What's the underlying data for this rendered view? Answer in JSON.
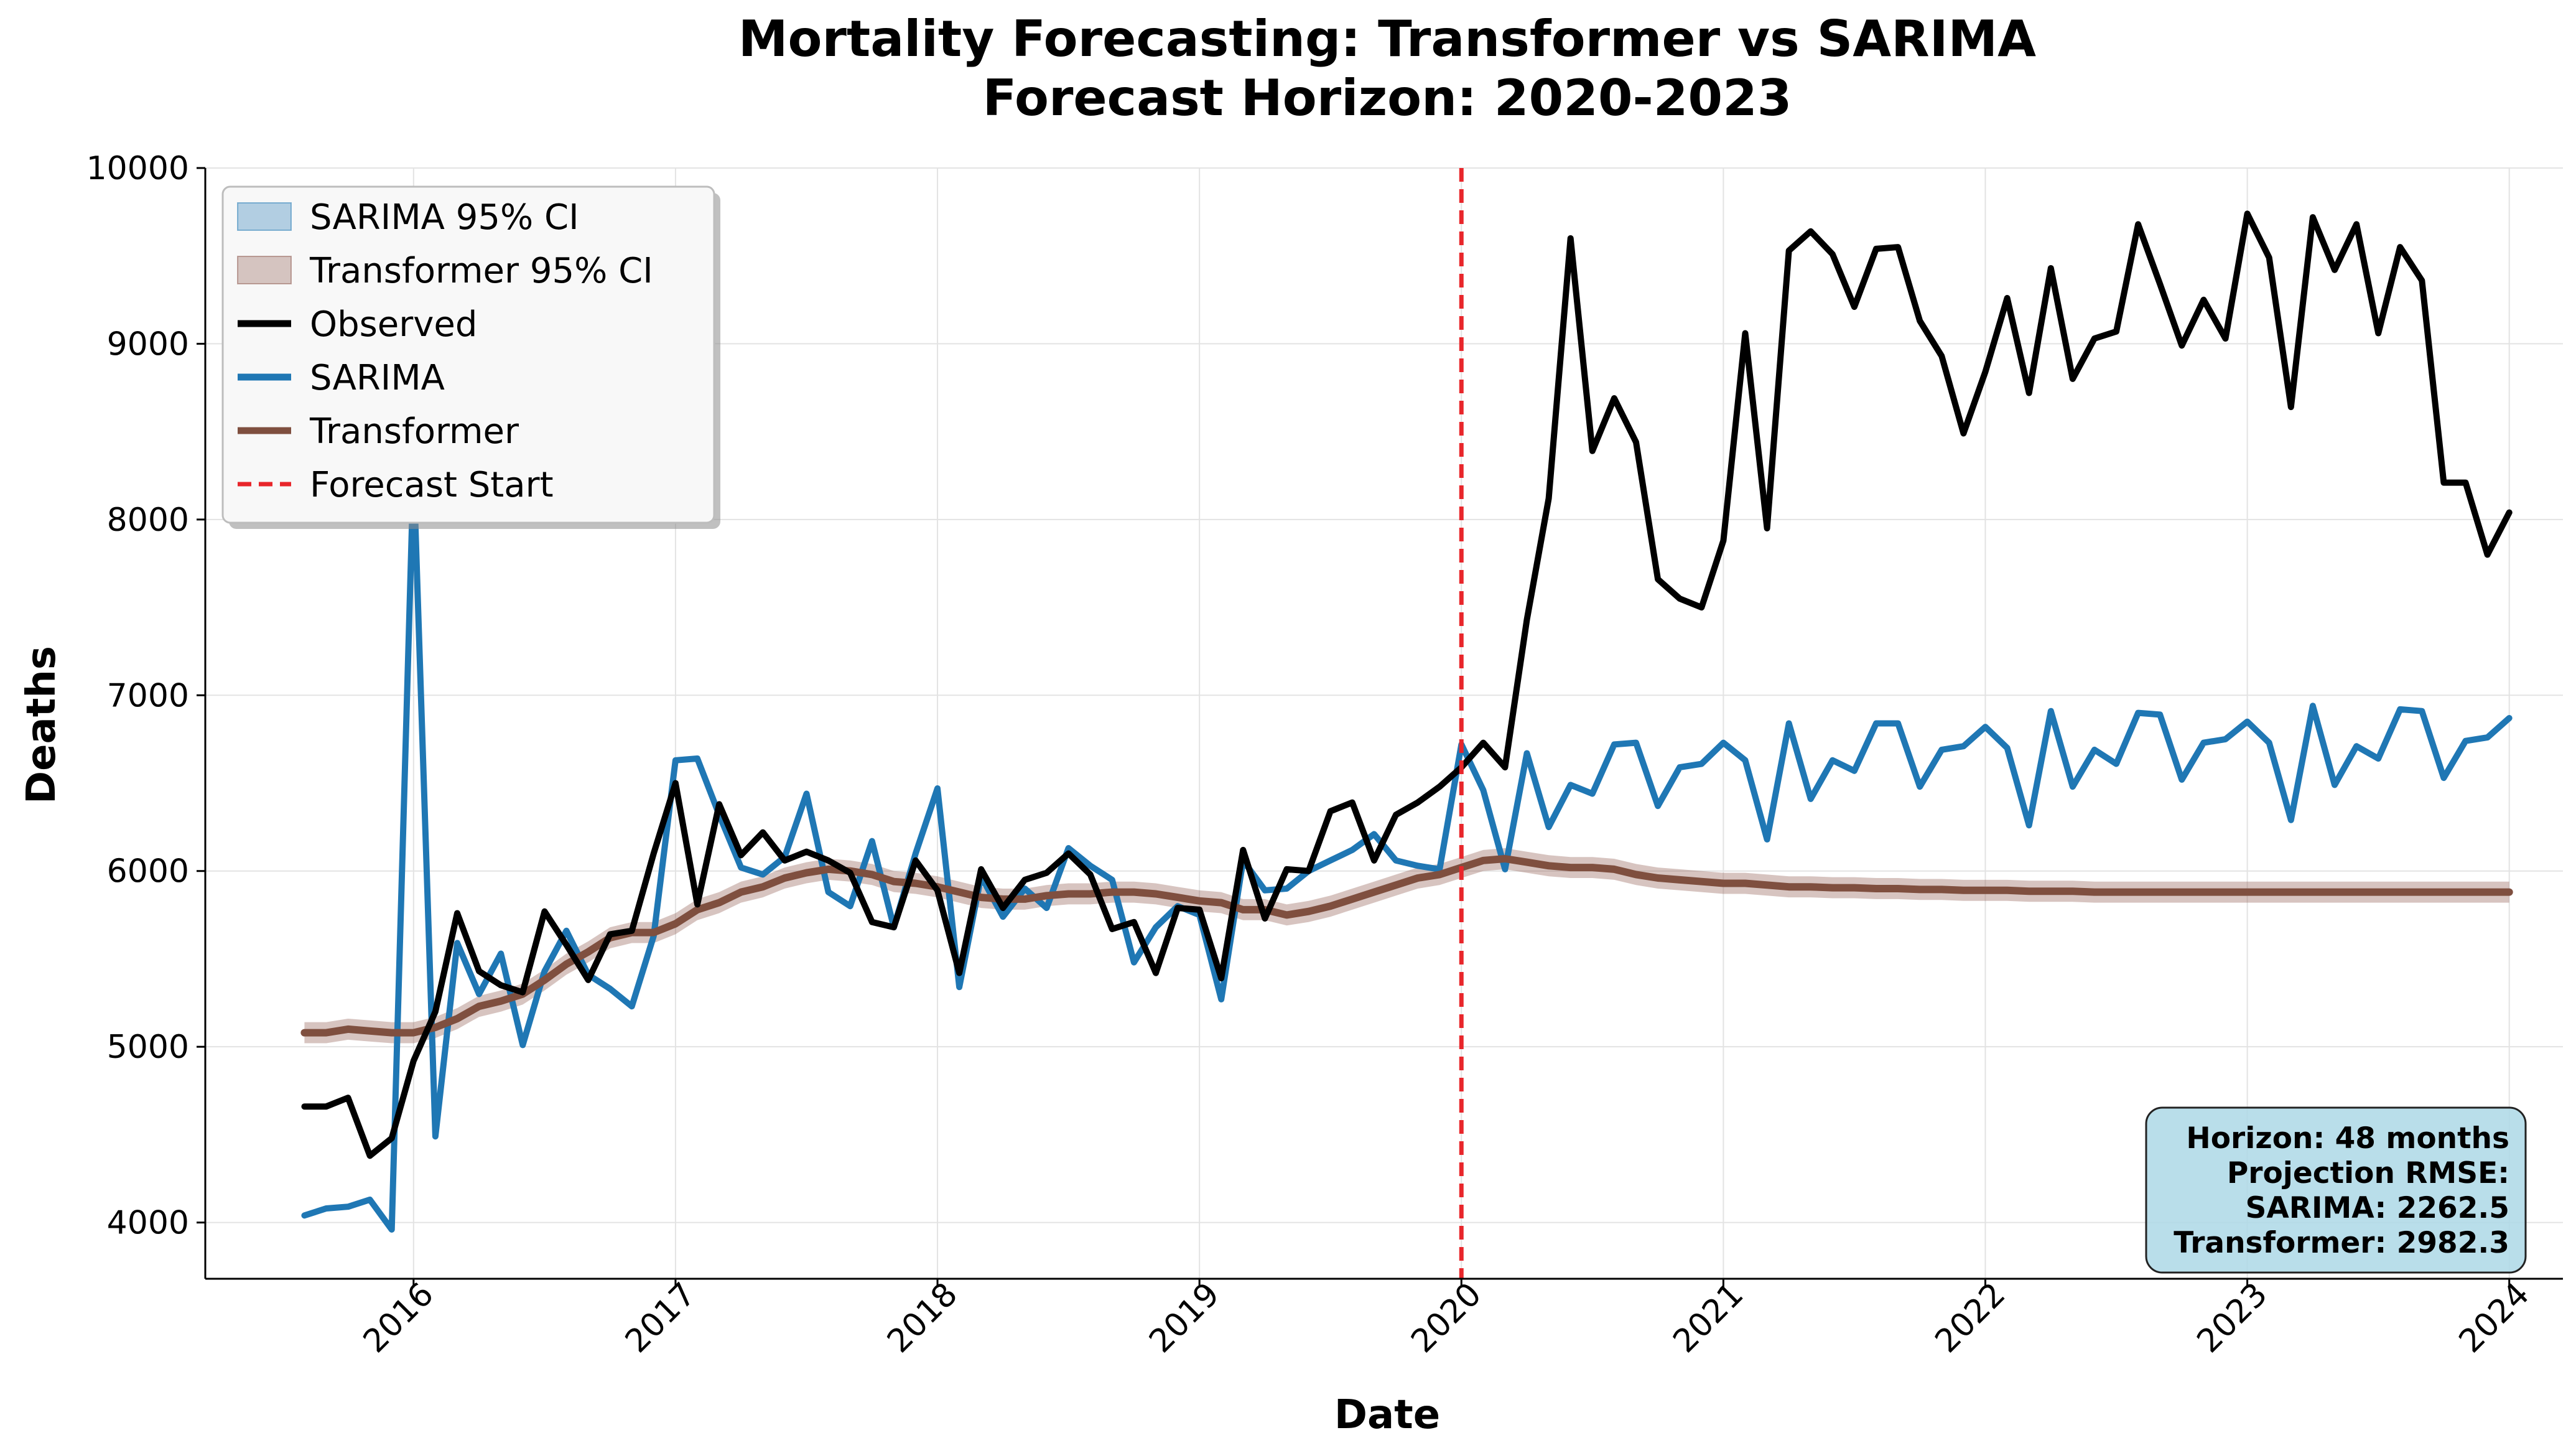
{
  "chart_data": {
    "type": "line",
    "title": "Mortality Forecasting: Transformer vs SARIMA",
    "subtitle": "Forecast Horizon: 2020-2023",
    "xlabel": "Date",
    "ylabel": "Deaths",
    "ylim": [
      3680,
      10000
    ],
    "xlim": [
      "2015-03-15",
      "2024-03-15"
    ],
    "x_ticks": [
      "2016",
      "2017",
      "2018",
      "2019",
      "2020",
      "2021",
      "2022",
      "2023",
      "2024"
    ],
    "y_ticks": [
      4000,
      5000,
      6000,
      7000,
      8000,
      9000,
      10000
    ],
    "grid": true,
    "legend_position": "upper-left",
    "x_start": "2015-08",
    "x_end": "2023-12",
    "forecast_start": "2020-01",
    "series": [
      {
        "name": "Observed",
        "color": "#000000",
        "values": [
          4660,
          4660,
          4710,
          4380,
          4480,
          4920,
          5200,
          5760,
          5430,
          5350,
          5310,
          5770,
          5580,
          5380,
          5640,
          5660,
          6100,
          6500,
          5810,
          6380,
          6090,
          6220,
          6060,
          6110,
          6060,
          5990,
          5710,
          5680,
          6060,
          5890,
          5420,
          6010,
          5790,
          5950,
          5990,
          6100,
          5980,
          5670,
          5710,
          5420,
          5790,
          5780,
          5390,
          6120,
          5730,
          6010,
          6000,
          6340,
          6390,
          6060,
          6320,
          6390,
          6480,
          6590,
          6730,
          6590,
          7430,
          8120,
          9600,
          8390,
          8690,
          8440,
          7660,
          7550,
          7500,
          7880,
          9060,
          7950,
          9530,
          9640,
          9510,
          9210,
          9540,
          9550,
          9130,
          8930,
          8490,
          8840,
          9260,
          8720,
          9430,
          8800,
          9030,
          9070,
          9680,
          9340,
          8990,
          9250,
          9030,
          9740,
          9490,
          8640,
          9720,
          9420,
          9680,
          9060,
          9550,
          9360,
          8210,
          8210,
          7800,
          8040
        ]
      },
      {
        "name": "SARIMA",
        "color": "#1f77b4",
        "values": [
          4040,
          4080,
          4090,
          4130,
          3960,
          8290,
          4490,
          5590,
          5300,
          5530,
          5010,
          5430,
          5660,
          5410,
          5330,
          5230,
          5630,
          6630,
          6640,
          6320,
          6020,
          5980,
          6080,
          6440,
          5880,
          5800,
          6170,
          5680,
          6100,
          6470,
          5340,
          5970,
          5740,
          5900,
          5790,
          6130,
          6030,
          5950,
          5480,
          5680,
          5800,
          5750,
          5270,
          6060,
          5890,
          5900,
          6000,
          6060,
          6120,
          6210,
          6060,
          6030,
          6010,
          6720,
          6460,
          6010,
          6670,
          6250,
          6490,
          6440,
          6720,
          6730,
          6370,
          6590,
          6610,
          6730,
          6630,
          6180,
          6840,
          6410,
          6630,
          6570,
          6840,
          6840,
          6480,
          6690,
          6710,
          6820,
          6700,
          6260,
          6910,
          6480,
          6690,
          6610,
          6900,
          6890,
          6520,
          6730,
          6750,
          6850,
          6730,
          6290,
          6940,
          6490,
          6710,
          6640,
          6920,
          6910,
          6530,
          6740,
          6760,
          6870
        ]
      },
      {
        "name": "Transformer",
        "color": "#7f4f3f",
        "ci_name": "Transformer 95% CI",
        "ci_color": "#8c564b",
        "ci_halfwidth": 60,
        "values": [
          5080,
          5080,
          5100,
          5090,
          5080,
          5080,
          5110,
          5160,
          5230,
          5260,
          5300,
          5380,
          5470,
          5540,
          5620,
          5650,
          5650,
          5700,
          5780,
          5820,
          5880,
          5910,
          5960,
          5990,
          6010,
          6000,
          5980,
          5940,
          5930,
          5910,
          5880,
          5850,
          5840,
          5840,
          5860,
          5870,
          5870,
          5880,
          5880,
          5870,
          5850,
          5830,
          5820,
          5780,
          5780,
          5750,
          5770,
          5800,
          5840,
          5880,
          5920,
          5960,
          5980,
          6020,
          6060,
          6070,
          6050,
          6030,
          6020,
          6020,
          6010,
          5980,
          5960,
          5950,
          5940,
          5930,
          5930,
          5920,
          5910,
          5910,
          5905,
          5905,
          5900,
          5900,
          5895,
          5895,
          5890,
          5890,
          5890,
          5885,
          5885,
          5885,
          5880,
          5880,
          5880,
          5880,
          5880,
          5880,
          5880,
          5880,
          5880,
          5880,
          5880,
          5880,
          5880,
          5880,
          5880,
          5880,
          5880,
          5880,
          5880,
          5880
        ]
      }
    ],
    "legend": [
      {
        "label": "SARIMA 95% CI",
        "kind": "patch",
        "color": "#1f77b4"
      },
      {
        "label": "Transformer 95% CI",
        "kind": "patch",
        "color": "#8c564b"
      },
      {
        "label": "Observed",
        "kind": "line",
        "color": "#000000"
      },
      {
        "label": "SARIMA",
        "kind": "line",
        "color": "#1f77b4"
      },
      {
        "label": "Transformer",
        "kind": "line",
        "color": "#7f4f3f"
      },
      {
        "label": "Forecast Start",
        "kind": "dashed",
        "color": "#e8262b"
      }
    ],
    "annotation": [
      "Horizon: 48 months",
      "Projection RMSE:",
      "SARIMA: 2262.5",
      "Transformer: 2982.3"
    ]
  }
}
